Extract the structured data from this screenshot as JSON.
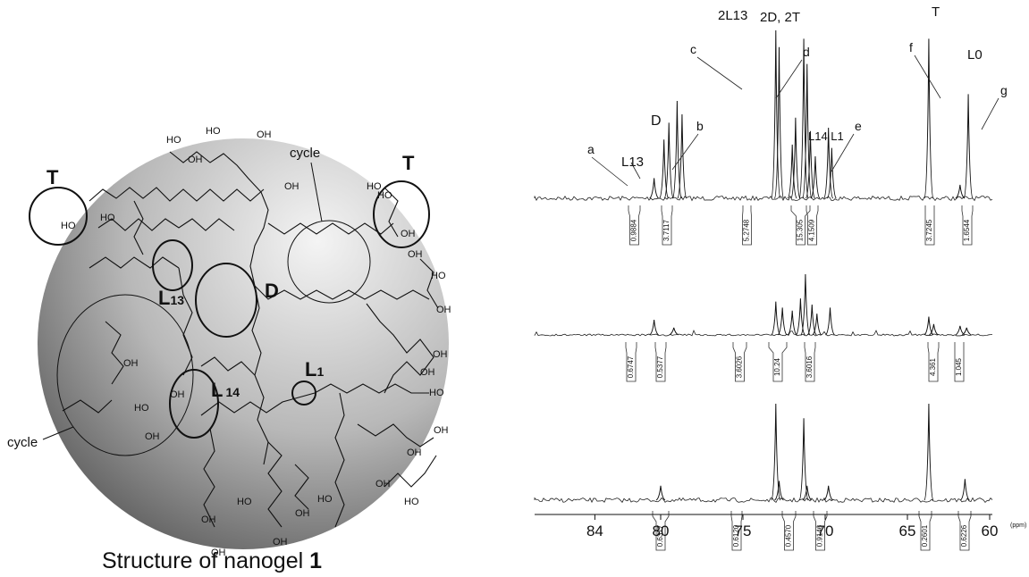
{
  "structure": {
    "caption": {
      "text": "Structure of nanogel ",
      "number": "1"
    },
    "labels": {
      "t_left": "T",
      "t_right": "T",
      "d": "D",
      "l13": "L",
      "l13_sub": "13",
      "l14": "L",
      "l14_sub": "14",
      "l1": "L",
      "l1_sub": "1",
      "cycle_top": "cycle",
      "cycle_left": "cycle"
    },
    "hydroxyls": [
      "HO",
      "HO",
      "OH",
      "HO",
      "HO",
      "OH",
      "OH",
      "HO",
      "HO",
      "OH",
      "OH",
      "HO",
      "OH",
      "OH",
      "HO",
      "OH",
      "OH",
      "HO",
      "OH",
      "HO",
      "HO",
      "OH",
      "OH",
      "OH",
      "OH",
      "HO",
      "OH",
      "OH",
      "OH",
      "OH"
    ]
  },
  "chart_data": {
    "type": "nmr",
    "xticks": [
      84,
      80,
      75,
      70,
      65,
      60
    ],
    "x_unit": "(ppm)",
    "peak_labels": [
      "a",
      "L13",
      "D",
      "b",
      "c",
      "2L13",
      "2D, 2T",
      "d",
      "L14 L1",
      "e",
      "f",
      "T",
      "L0",
      "g"
    ],
    "spectra": [
      {
        "ppm": [
          80.4,
          79.8,
          79.5,
          79.0,
          78.7,
          73.0,
          72.8,
          72.0,
          71.8,
          71.3,
          71.1,
          70.9,
          70.6,
          69.8,
          69.6,
          63.7,
          61.8,
          61.3
        ],
        "intensity": [
          0.12,
          0.35,
          0.45,
          0.58,
          0.5,
          1.0,
          0.9,
          0.32,
          0.48,
          0.95,
          0.8,
          0.4,
          0.25,
          0.42,
          0.3,
          0.95,
          0.08,
          0.62
        ],
        "integrals": [
          "0.9884",
          "3.7117",
          "5.2748",
          "15.305",
          "4.1509",
          "3.7245",
          "1.6544"
        ]
      },
      {
        "ppm": [
          80.4,
          79.2,
          73.0,
          72.6,
          72.0,
          71.5,
          71.2,
          70.8,
          70.5,
          69.7,
          63.7,
          63.4,
          61.8,
          61.4
        ],
        "intensity": [
          0.25,
          0.12,
          0.55,
          0.45,
          0.4,
          0.6,
          1.0,
          0.5,
          0.35,
          0.45,
          0.3,
          0.18,
          0.15,
          0.12
        ],
        "integrals": [
          "0.6747",
          "0.5377",
          "3.6026",
          "10.24",
          "3.6016",
          "4.361",
          "1.045"
        ]
      },
      {
        "ppm": [
          80.0,
          73.0,
          72.8,
          71.3,
          71.1,
          69.8,
          63.7,
          61.5
        ],
        "intensity": [
          0.15,
          1.0,
          0.2,
          0.85,
          0.15,
          0.15,
          1.0,
          0.22
        ],
        "integrals": [
          "0.6377",
          "0.6120",
          "0.4570",
          "0.9146",
          "0.2601",
          "0.6226"
        ]
      }
    ]
  }
}
